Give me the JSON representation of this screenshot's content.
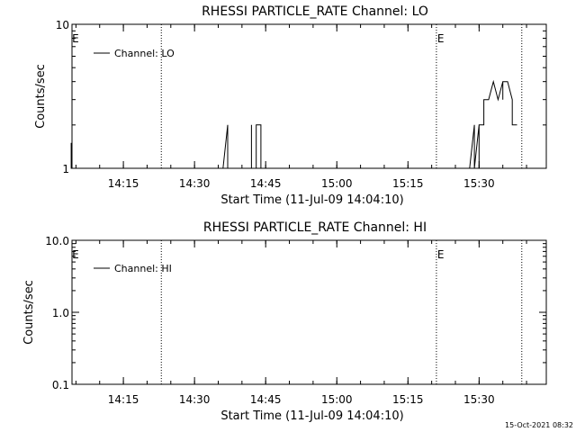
{
  "footer": {
    "timestamp": "15-Oct-2021 08:32"
  },
  "chart_data": [
    {
      "type": "line",
      "title": "RHESSI PARTICLE_RATE Channel: LO",
      "xlabel": "Start Time (11-Jul-09 14:04:10)",
      "ylabel": "Counts/sec",
      "yscale": "log",
      "ylim": [
        1,
        10
      ],
      "xlim_minutes_from_start": [
        0,
        100
      ],
      "x_ticks": [
        "14:15",
        "14:30",
        "14:45",
        "15:00",
        "15:15",
        "15:30"
      ],
      "y_ticks": [
        "1",
        "10"
      ],
      "event_markers": [
        {
          "time": "14:04",
          "label": "E"
        },
        {
          "time": "15:21",
          "label": "E"
        }
      ],
      "dotted_lines": [
        "14:23",
        "15:21",
        "15:39"
      ],
      "legend": {
        "placement": "top-left",
        "entries": [
          "Channel: LO"
        ]
      },
      "series": [
        {
          "name": "Channel: LO",
          "times": [
            "14:04",
            "14:04",
            "14:04",
            "14:36",
            "14:37",
            "14:37",
            "14:37",
            "14:42",
            "14:42",
            "14:42",
            "14:43",
            "14:43",
            "14:44",
            "14:44",
            "14:44",
            "15:28",
            "15:29",
            "15:29",
            "15:29",
            "15:30",
            "15:30",
            "15:30",
            "15:31",
            "15:31",
            "15:32",
            "15:33",
            "15:34",
            "15:35",
            "15:35",
            "15:35",
            "15:36",
            "15:37",
            "15:37",
            "15:38"
          ],
          "values": [
            1.5,
            1.0,
            1.0,
            1.0,
            2.0,
            2.0,
            1.0,
            1.0,
            2.0,
            1.0,
            1.0,
            2.0,
            2.0,
            1.0,
            1.0,
            1.0,
            2.0,
            2.0,
            1.0,
            2.0,
            1.0,
            2.0,
            2.0,
            3.0,
            3.0,
            4.0,
            3.0,
            4.0,
            3.0,
            4.0,
            4.0,
            3.0,
            2.0,
            2.0
          ]
        }
      ]
    },
    {
      "type": "line",
      "title": "RHESSI PARTICLE_RATE Channel: HI",
      "xlabel": "Start Time (11-Jul-09 14:04:10)",
      "ylabel": "Counts/sec",
      "yscale": "log",
      "ylim": [
        0.1,
        10
      ],
      "x_ticks": [
        "14:15",
        "14:30",
        "14:45",
        "15:00",
        "15:15",
        "15:30"
      ],
      "y_ticks": [
        "0.1",
        "1.0",
        "10.0"
      ],
      "event_markers": [
        {
          "time": "14:04",
          "label": "E"
        },
        {
          "time": "15:21",
          "label": "E"
        }
      ],
      "dotted_lines": [
        "14:23",
        "15:21",
        "15:39"
      ],
      "legend": {
        "placement": "top-left",
        "entries": [
          "Channel: HI"
        ]
      },
      "series": [
        {
          "name": "Channel: HI",
          "times": [],
          "values": []
        }
      ]
    }
  ]
}
